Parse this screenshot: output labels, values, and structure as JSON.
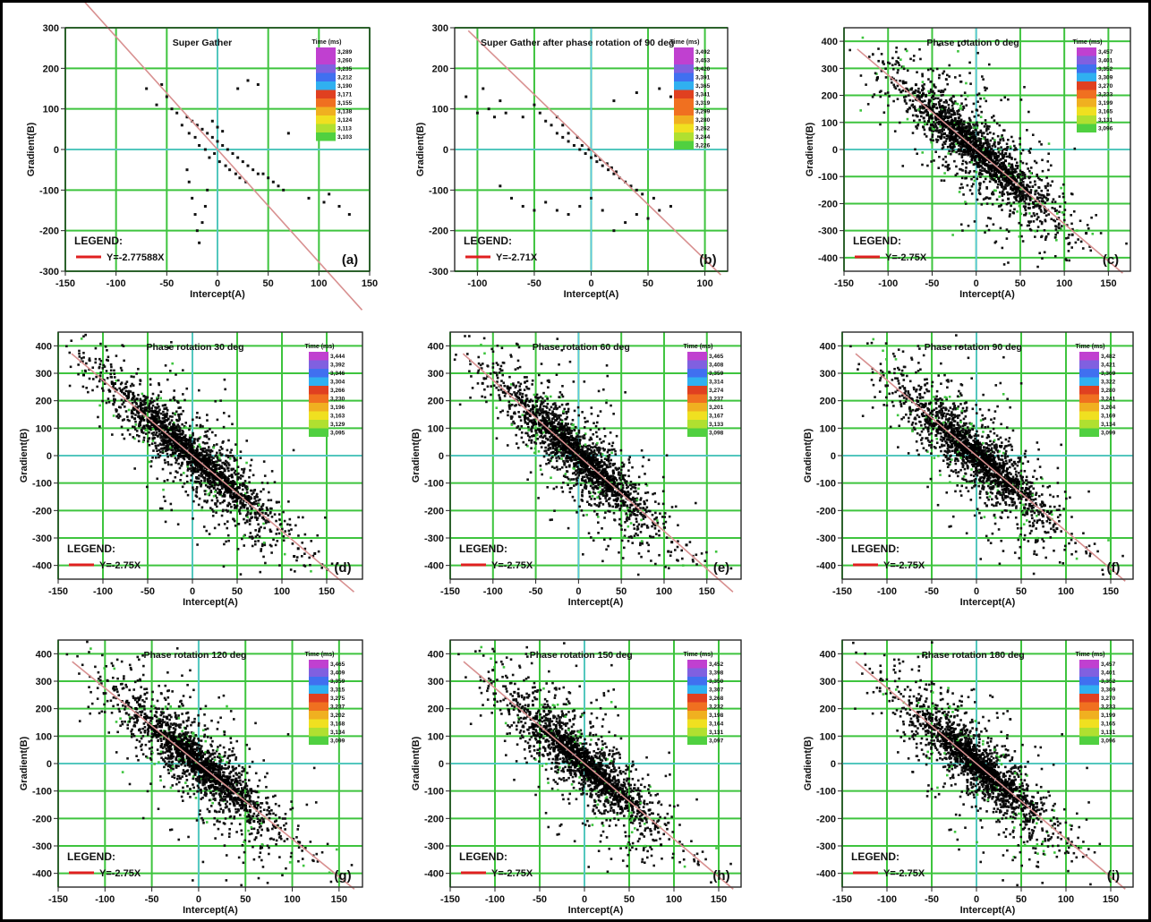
{
  "chart_data": [
    {
      "type": "scatter",
      "panel_label": "(a)",
      "title": "Super Gather",
      "xlabel": "Intercept(A)",
      "ylabel": "Gradient(B)",
      "xlim": [
        -150,
        150
      ],
      "ylim": [
        -300,
        300
      ],
      "xticks": [
        -150,
        -100,
        -50,
        0,
        50,
        100,
        150
      ],
      "yticks": [
        300,
        200,
        100,
        0,
        -100,
        -200,
        -300
      ],
      "grid": true,
      "legend_title": "LEGEND:",
      "trend_label": "Y=-2.77588X",
      "trend_slope": -2.77588,
      "colorbar_title": "Time (ms)",
      "colorbar_labels": [
        "3,289",
        "3,260",
        "3,235",
        "3,212",
        "3,190",
        "3,171",
        "3,155",
        "3,138",
        "3,124",
        "3,113",
        "3,103"
      ],
      "density": "sparse",
      "points": [
        [
          -70,
          150
        ],
        [
          -60,
          110
        ],
        [
          -40,
          90
        ],
        [
          -30,
          80
        ],
        [
          -25,
          70
        ],
        [
          -20,
          60
        ],
        [
          -15,
          50
        ],
        [
          -10,
          40
        ],
        [
          -5,
          30
        ],
        [
          0,
          20
        ],
        [
          5,
          10
        ],
        [
          10,
          0
        ],
        [
          15,
          -10
        ],
        [
          20,
          -20
        ],
        [
          25,
          -30
        ],
        [
          30,
          -40
        ],
        [
          35,
          -50
        ],
        [
          40,
          -60
        ],
        [
          -35,
          60
        ],
        [
          -28,
          40
        ],
        [
          -22,
          30
        ],
        [
          -18,
          10
        ],
        [
          -12,
          0
        ],
        [
          -8,
          -20
        ],
        [
          -3,
          -10
        ],
        [
          2,
          -30
        ],
        [
          8,
          -40
        ],
        [
          12,
          -50
        ],
        [
          18,
          -60
        ],
        [
          22,
          -70
        ],
        [
          28,
          -80
        ],
        [
          -30,
          -50
        ],
        [
          -28,
          -80
        ],
        [
          -25,
          -120
        ],
        [
          -22,
          -160
        ],
        [
          -20,
          -200
        ],
        [
          -18,
          -230
        ],
        [
          -15,
          -180
        ],
        [
          -12,
          -140
        ],
        [
          -10,
          -100
        ],
        [
          -45,
          100
        ],
        [
          -50,
          130
        ],
        [
          -55,
          160
        ],
        [
          20,
          150
        ],
        [
          30,
          170
        ],
        [
          40,
          160
        ],
        [
          70,
          40
        ],
        [
          90,
          -120
        ],
        [
          105,
          -130
        ],
        [
          110,
          -110
        ],
        [
          120,
          -140
        ],
        [
          130,
          -160
        ],
        [
          55,
          -80
        ],
        [
          60,
          -90
        ],
        [
          65,
          -100
        ],
        [
          45,
          -60
        ],
        [
          50,
          -70
        ],
        [
          -5,
          70
        ],
        [
          0,
          55
        ],
        [
          5,
          45
        ]
      ]
    },
    {
      "type": "scatter",
      "panel_label": "(b)",
      "title": "Super Gather after phase rotation of 90 deg",
      "xlabel": "Intercept(A)",
      "ylabel": "Gradient(B)",
      "xlim": [
        -120,
        120
      ],
      "ylim": [
        -300,
        300
      ],
      "xticks": [
        -100,
        -50,
        0,
        50,
        100
      ],
      "yticks": [
        300,
        200,
        100,
        0,
        -100,
        -200,
        -300
      ],
      "grid": true,
      "legend_title": "LEGEND:",
      "trend_label": "Y=-2.71X",
      "trend_slope": -2.71,
      "colorbar_title": "Time (ms)",
      "colorbar_labels": [
        "3,492",
        "3,453",
        "3,420",
        "3,391",
        "3,365",
        "3,341",
        "3,319",
        "3,299",
        "3,280",
        "3,262",
        "3,244",
        "3,226"
      ],
      "density": "sparse",
      "points": [
        [
          -110,
          130
        ],
        [
          -95,
          150
        ],
        [
          -80,
          120
        ],
        [
          -75,
          90
        ],
        [
          -60,
          80
        ],
        [
          -50,
          110
        ],
        [
          -45,
          90
        ],
        [
          -40,
          70
        ],
        [
          -35,
          60
        ],
        [
          -30,
          40
        ],
        [
          -25,
          30
        ],
        [
          -20,
          20
        ],
        [
          -15,
          10
        ],
        [
          -10,
          0
        ],
        [
          -5,
          -10
        ],
        [
          0,
          -20
        ],
        [
          5,
          -30
        ],
        [
          10,
          -40
        ],
        [
          15,
          -50
        ],
        [
          20,
          -60
        ],
        [
          25,
          -70
        ],
        [
          30,
          -80
        ],
        [
          35,
          -90
        ],
        [
          40,
          -100
        ],
        [
          -30,
          80
        ],
        [
          -25,
          60
        ],
        [
          -20,
          40
        ],
        [
          -12,
          30
        ],
        [
          -8,
          10
        ],
        [
          -2,
          0
        ],
        [
          4,
          -15
        ],
        [
          8,
          -25
        ],
        [
          14,
          -35
        ],
        [
          18,
          -45
        ],
        [
          22,
          -55
        ],
        [
          -80,
          -90
        ],
        [
          -70,
          -120
        ],
        [
          -60,
          -140
        ],
        [
          -50,
          -150
        ],
        [
          -40,
          -130
        ],
        [
          -30,
          -150
        ],
        [
          -20,
          -160
        ],
        [
          -10,
          -140
        ],
        [
          0,
          -120
        ],
        [
          10,
          -150
        ],
        [
          20,
          -200
        ],
        [
          30,
          -180
        ],
        [
          40,
          -160
        ],
        [
          50,
          -170
        ],
        [
          60,
          -150
        ],
        [
          70,
          -140
        ],
        [
          20,
          120
        ],
        [
          40,
          140
        ],
        [
          60,
          150
        ],
        [
          70,
          130
        ],
        [
          80,
          150
        ],
        [
          -100,
          90
        ],
        [
          -90,
          100
        ],
        [
          -85,
          80
        ],
        [
          45,
          -110
        ],
        [
          55,
          -120
        ]
      ]
    },
    {
      "type": "scatter",
      "panel_label": "(c)",
      "title": "Phase rotation 0 deg",
      "xlabel": "Intercept(A)",
      "ylabel": "Gradient(B)",
      "xlim": [
        -150,
        175
      ],
      "ylim": [
        -450,
        450
      ],
      "xticks": [
        -150,
        -100,
        -50,
        0,
        50,
        100,
        150
      ],
      "yticks": [
        400,
        300,
        200,
        100,
        0,
        -100,
        -200,
        -300,
        -400
      ],
      "grid": true,
      "legend_title": "LEGEND:",
      "trend_label": "Y=-2.75X",
      "trend_slope": -2.75,
      "colorbar_title": "Time (ms)",
      "colorbar_labels": [
        "3,457",
        "3,401",
        "3,352",
        "3,309",
        "3,270",
        "3,233",
        "3,199",
        "3,165",
        "3,131",
        "3,096"
      ],
      "density": "dense",
      "spread_x": 60,
      "spread_y": 95,
      "point_count": 1400
    },
    {
      "type": "scatter",
      "panel_label": "(d)",
      "title": "Phase rotation 30 deg",
      "xlabel": "Intercept(A)",
      "ylabel": "Gradient(B)",
      "xlim": [
        -150,
        190
      ],
      "ylim": [
        -450,
        450
      ],
      "xticks": [
        -150,
        -100,
        -50,
        0,
        50,
        100,
        150
      ],
      "yticks": [
        400,
        300,
        200,
        100,
        0,
        -100,
        -200,
        -300,
        -400
      ],
      "grid": true,
      "legend_title": "LEGEND:",
      "trend_label": "Y=-2.75X",
      "trend_slope": -2.75,
      "colorbar_title": "Time (ms)",
      "colorbar_labels": [
        "3,444",
        "3,392",
        "3,346",
        "3,304",
        "3,266",
        "3,230",
        "3,196",
        "3,163",
        "3,129",
        "3,095"
      ],
      "density": "dense",
      "spread_x": 65,
      "spread_y": 85,
      "point_count": 1400
    },
    {
      "type": "scatter",
      "panel_label": "(e)",
      "title": "Phase rotation 60 deg",
      "xlabel": "Intercept(A)",
      "ylabel": "Gradient(B)",
      "xlim": [
        -150,
        190
      ],
      "ylim": [
        -450,
        450
      ],
      "xticks": [
        -150,
        -100,
        -50,
        0,
        50,
        100,
        150
      ],
      "yticks": [
        400,
        300,
        200,
        100,
        0,
        -100,
        -200,
        -300,
        -400
      ],
      "grid": true,
      "legend_title": "LEGEND:",
      "trend_label": "Y=-2.75X",
      "trend_slope": -2.75,
      "colorbar_title": "Time (ms)",
      "colorbar_labels": [
        "3,465",
        "3,408",
        "3,359",
        "3,314",
        "3,274",
        "3,237",
        "3,201",
        "3,167",
        "3,133",
        "3,098"
      ],
      "density": "dense",
      "spread_x": 60,
      "spread_y": 95,
      "point_count": 1400
    },
    {
      "type": "scatter",
      "panel_label": "(f)",
      "title": "Phase rotation 90 deg",
      "xlabel": "Intercept(A)",
      "ylabel": "Gradient(B)",
      "xlim": [
        -150,
        175
      ],
      "ylim": [
        -450,
        450
      ],
      "xticks": [
        -150,
        -100,
        -50,
        0,
        50,
        100,
        150
      ],
      "yticks": [
        400,
        300,
        200,
        100,
        0,
        -100,
        -200,
        -300,
        -400
      ],
      "grid": true,
      "legend_title": "LEGEND:",
      "trend_label": "Y=-2.75X",
      "trend_slope": -2.75,
      "colorbar_title": "Time (ms)",
      "colorbar_labels": [
        "3,482",
        "3,421",
        "3,369",
        "3,322",
        "3,280",
        "3,241",
        "3,204",
        "3,169",
        "3,134",
        "3,099"
      ],
      "density": "dense",
      "spread_x": 55,
      "spread_y": 100,
      "point_count": 1300
    },
    {
      "type": "scatter",
      "panel_label": "(g)",
      "title": "Phase rotation 120 deg",
      "xlabel": "Intercept(A)",
      "ylabel": "Gradient(B)",
      "xlim": [
        -150,
        175
      ],
      "ylim": [
        -450,
        450
      ],
      "xticks": [
        -150,
        -100,
        -50,
        0,
        50,
        100,
        150
      ],
      "yticks": [
        400,
        300,
        200,
        100,
        0,
        -100,
        -200,
        -300,
        -400
      ],
      "grid": true,
      "legend_title": "LEGEND:",
      "trend_label": "Y=-2.75X",
      "trend_slope": -2.75,
      "colorbar_title": "Time (ms)",
      "colorbar_labels": [
        "3,465",
        "3,409",
        "3,359",
        "3,315",
        "3,275",
        "3,237",
        "3,202",
        "3,168",
        "3,134",
        "3,099"
      ],
      "density": "dense",
      "spread_x": 55,
      "spread_y": 95,
      "point_count": 1300
    },
    {
      "type": "scatter",
      "panel_label": "(h)",
      "title": "Phase rotation 150 deg",
      "xlabel": "Intercept(A)",
      "ylabel": "Gradient(B)",
      "xlim": [
        -150,
        175
      ],
      "ylim": [
        -450,
        450
      ],
      "xticks": [
        -150,
        -100,
        -50,
        0,
        50,
        100,
        150
      ],
      "yticks": [
        400,
        300,
        200,
        100,
        0,
        -100,
        -200,
        -300,
        -400
      ],
      "grid": true,
      "legend_title": "LEGEND:",
      "trend_label": "Y=-2.75X",
      "trend_slope": -2.75,
      "colorbar_title": "Time (ms)",
      "colorbar_labels": [
        "3,452",
        "3,398",
        "3,350",
        "3,307",
        "3,268",
        "3,232",
        "3,198",
        "3,164",
        "3,131",
        "3,097"
      ],
      "density": "dense",
      "spread_x": 55,
      "spread_y": 100,
      "point_count": 1300
    },
    {
      "type": "scatter",
      "panel_label": "(i)",
      "title": "Phase rotation 180 deg",
      "xlabel": "Intercept(A)",
      "ylabel": "Gradient(B)",
      "xlim": [
        -150,
        175
      ],
      "ylim": [
        -450,
        450
      ],
      "xticks": [
        -150,
        -100,
        -50,
        0,
        50,
        100,
        150
      ],
      "yticks": [
        400,
        300,
        200,
        100,
        0,
        -100,
        -200,
        -300,
        -400
      ],
      "grid": true,
      "legend_title": "LEGEND:",
      "trend_label": "Y=-2.75X",
      "trend_slope": -2.75,
      "colorbar_title": "Time (ms)",
      "colorbar_labels": [
        "3,457",
        "3,401",
        "3,352",
        "3,309",
        "3,270",
        "3,233",
        "3,199",
        "3,165",
        "3,131",
        "3,096"
      ],
      "density": "dense",
      "spread_x": 55,
      "spread_y": 95,
      "point_count": 1300
    }
  ],
  "colors": {
    "grid": "#3ec43e",
    "zero_axis": "#5ac8e8",
    "trend_line": "#d89090",
    "legend_line": "#e02020",
    "points": "#111111",
    "colorbar": [
      "#c040d0",
      "#8060e0",
      "#4070f0",
      "#30b0f0",
      "#e04020",
      "#f07020",
      "#f0b020",
      "#f0e020",
      "#b0e030",
      "#50d040"
    ]
  }
}
